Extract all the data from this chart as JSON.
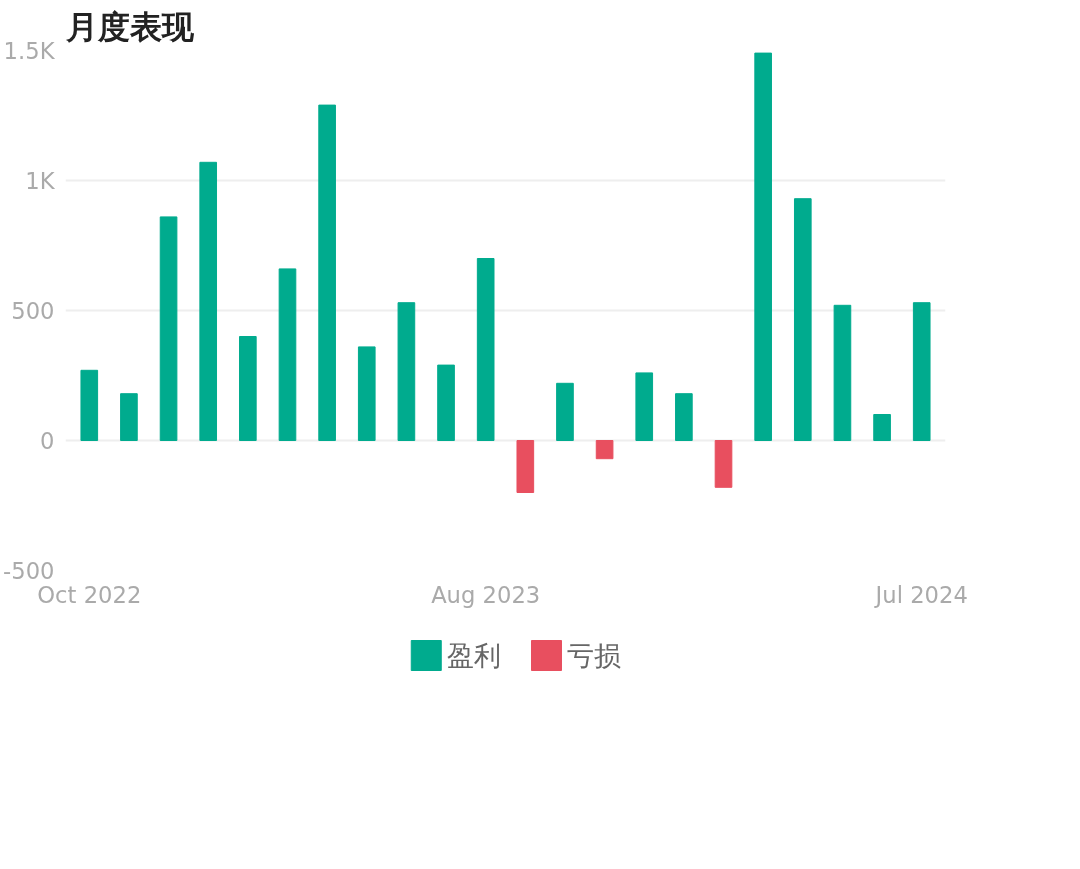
{
  "chart_data": {
    "type": "bar",
    "title": "月度表现",
    "categories": [
      "Oct 2022",
      null,
      null,
      null,
      null,
      null,
      null,
      null,
      null,
      null,
      "Aug 2023",
      null,
      null,
      null,
      null,
      null,
      null,
      null,
      null,
      null,
      null,
      "Jul 2024"
    ],
    "series": [
      {
        "name": "盈利",
        "color": "#00ab8e",
        "values": [
          270,
          180,
          860,
          1070,
          400,
          660,
          1290,
          360,
          530,
          290,
          700,
          null,
          220,
          null,
          260,
          180,
          null,
          1490,
          930,
          520,
          100,
          530
        ]
      },
      {
        "name": "亏损",
        "color": "#e84f5f",
        "values": [
          null,
          null,
          null,
          null,
          null,
          null,
          null,
          null,
          null,
          null,
          null,
          -200,
          null,
          -70,
          null,
          null,
          -180,
          null,
          null,
          null,
          null,
          null
        ]
      }
    ],
    "ylim": [
      -500,
      1500
    ],
    "yticks": [
      {
        "value": -500,
        "label": "-500"
      },
      0,
      500,
      {
        "value": 1000,
        "label": "1K"
      },
      {
        "value": 1500,
        "label": "1.5K"
      }
    ],
    "grid": "y",
    "legend": "bottom"
  }
}
